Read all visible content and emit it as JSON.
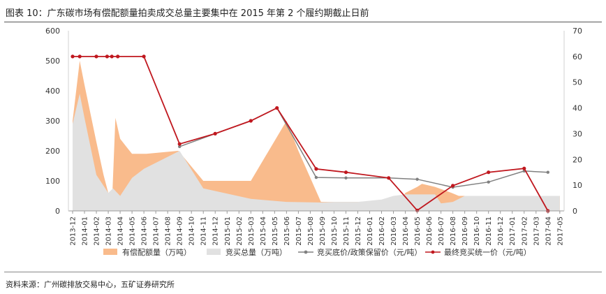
{
  "figure_title": "图表 10：广东碳市场有偿配额量拍卖成交总量主要集中在 2015 年第 2 个履约期截止日前",
  "source": "资料来源：广州碳排放交易中心，五矿证券研究所",
  "chart_data": {
    "type": "line",
    "title": "",
    "categories": [
      "2013-12",
      "2014-01",
      "2014-02",
      "2014-03",
      "2014-04",
      "2014-05",
      "2014-06",
      "2014-07",
      "2014-08",
      "2014-09",
      "2014-10",
      "2014-11",
      "2014-12",
      "2015-01",
      "2015-02",
      "2015-03",
      "2015-04",
      "2015-05",
      "2015-06",
      "2015-07",
      "2015-08",
      "2015-09",
      "2015-10",
      "2015-11",
      "2015-12",
      "2016-01",
      "2016-02",
      "2016-03",
      "2016-04",
      "2016-05",
      "2016-06",
      "2016-07",
      "2016-08",
      "2016-09",
      "2016-10",
      "2016-11",
      "2016-12",
      "2017-01",
      "2017-02",
      "2017-03",
      "2017-04",
      "2017-05"
    ],
    "y_left": {
      "min": 0,
      "max": 600,
      "ticks": [
        0,
        100,
        200,
        300,
        400,
        500,
        600
      ]
    },
    "y_right": {
      "min": 0,
      "max": 70,
      "ticks": [
        0,
        10,
        20,
        30,
        40,
        50,
        60,
        70
      ]
    },
    "grid": false,
    "legend_position": "bottom",
    "series": [
      {
        "name": "有偿配额量（万吨）",
        "type": "area",
        "axis": "left",
        "color": "#f9bb8c",
        "points": [
          [
            0,
            300
          ],
          [
            0.6,
            500
          ],
          [
            1,
            420
          ],
          [
            2,
            230
          ],
          [
            2.6,
            120
          ],
          [
            3,
            60
          ],
          [
            3.35,
            60
          ],
          [
            3.6,
            310
          ],
          [
            4,
            240
          ],
          [
            4.5,
            215
          ],
          [
            5,
            190
          ],
          [
            5.9,
            190
          ],
          [
            6.2,
            190
          ],
          [
            8.9,
            200
          ],
          [
            11,
            100
          ],
          [
            15,
            100
          ],
          [
            18,
            300
          ],
          [
            19,
            200
          ],
          [
            20.9,
            30
          ],
          [
            22,
            30
          ],
          [
            23,
            30
          ],
          [
            24,
            30
          ],
          [
            27.5,
            30
          ],
          [
            28,
            60
          ],
          [
            29,
            80
          ],
          [
            29.4,
            90
          ],
          [
            30.5,
            80
          ],
          [
            31.9,
            60
          ],
          [
            32.5,
            50
          ],
          [
            37,
            50
          ],
          [
            39,
            50
          ],
          [
            39.4,
            50
          ],
          [
            41,
            50
          ]
        ]
      },
      {
        "name": "竞买总量（万吨）",
        "type": "area",
        "axis": "left",
        "color": "#e1e1e1",
        "points": [
          [
            0,
            290
          ],
          [
            0.6,
            390
          ],
          [
            1,
            310
          ],
          [
            2,
            120
          ],
          [
            3,
            60
          ],
          [
            3.4,
            75
          ],
          [
            4,
            50
          ],
          [
            5,
            110
          ],
          [
            6,
            140
          ],
          [
            9,
            200
          ],
          [
            11,
            75
          ],
          [
            15,
            40
          ],
          [
            18,
            30
          ],
          [
            20.9,
            28
          ],
          [
            22,
            30
          ],
          [
            23,
            30
          ],
          [
            24,
            30
          ],
          [
            26,
            38
          ],
          [
            27,
            50
          ],
          [
            28,
            55
          ],
          [
            30.5,
            55
          ],
          [
            31,
            25
          ],
          [
            32,
            30
          ],
          [
            33,
            50
          ],
          [
            39,
            50
          ],
          [
            41,
            50
          ]
        ]
      },
      {
        "name": "竞买底价/政策保留价（元/吨）",
        "type": "line",
        "axis": "right",
        "color": "#808080",
        "points": [
          [
            9,
            25
          ],
          [
            12,
            30
          ],
          [
            15,
            35
          ],
          [
            17.2,
            40
          ],
          [
            20.5,
            13
          ],
          [
            23,
            12.8
          ],
          [
            26.6,
            12.8
          ],
          [
            29,
            12.3
          ],
          [
            32,
            9.2
          ],
          [
            35,
            11.2
          ],
          [
            38,
            15.5
          ],
          [
            40,
            15
          ]
        ]
      },
      {
        "name": "最终竞买统一价（元/吨）",
        "type": "line",
        "axis": "right",
        "color": "#c0181f",
        "points": [
          [
            0,
            60
          ],
          [
            0.6,
            60
          ],
          [
            2,
            60
          ],
          [
            2.9,
            60
          ],
          [
            3.3,
            60
          ],
          [
            3.8,
            60
          ],
          [
            6,
            60
          ],
          [
            9,
            26
          ],
          [
            12,
            30
          ],
          [
            15,
            35
          ],
          [
            17.2,
            40
          ],
          [
            20.5,
            16.3
          ],
          [
            23,
            15
          ],
          [
            26.6,
            12.8
          ],
          [
            29,
            0.2
          ],
          [
            32,
            9.8
          ],
          [
            35,
            15
          ],
          [
            38,
            16.5
          ],
          [
            40,
            0
          ]
        ]
      }
    ]
  }
}
